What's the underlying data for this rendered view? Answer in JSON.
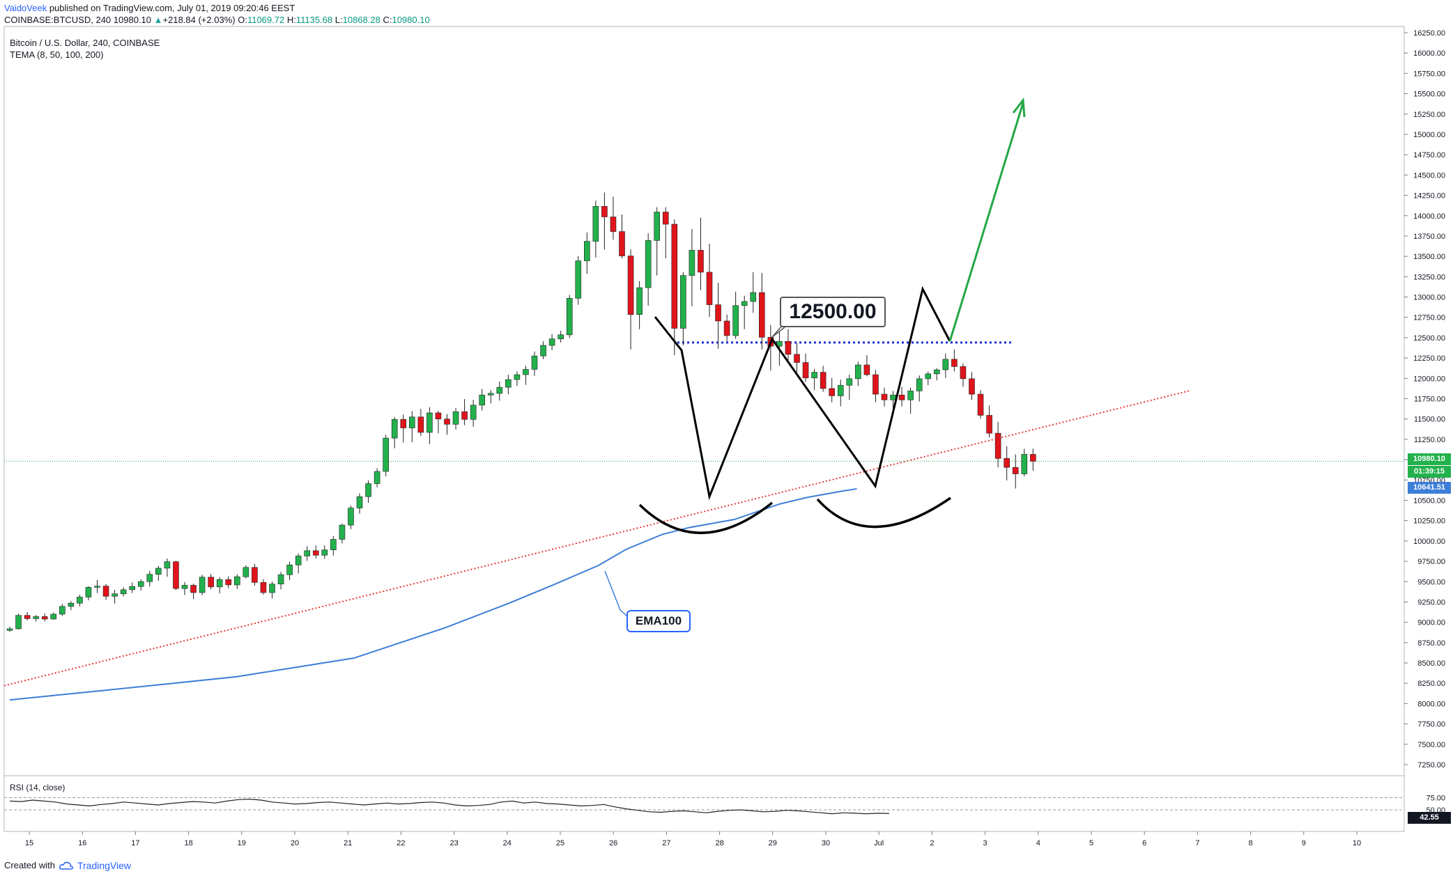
{
  "header": {
    "author": "VaidoVeek",
    "published_text": "published on TradingView.com, July 01, 2019 09:20:46 EEST",
    "symbol": "COINBASE:BTCUSD, 240",
    "last_price": "10980.10",
    "change": "+218.84 (+2.03%)",
    "o_label": "O:",
    "open": "11069.72",
    "h_label": "H:",
    "high": "11135.68",
    "l_label": "L:",
    "low": "10868.28",
    "c_label": "C:",
    "close": "10980.10"
  },
  "legend": {
    "title": "Bitcoin / U.S. Dollar, 240, COINBASE",
    "indicator": "TEMA (8, 50, 100, 200)",
    "rsi": "RSI (14, close)"
  },
  "annotations": {
    "ema_label": "EMA100",
    "price_callout": "12500.00"
  },
  "axis_tags": {
    "last_price": "10980.10",
    "countdown": "01:39:15",
    "ema_value": "10641.51",
    "rsi_value": "42.55"
  },
  "footer": {
    "created_with": "Created with",
    "brand": "TradingView"
  },
  "colors": {
    "up": "#26a69a",
    "up_candle": "#22b14c",
    "down_candle": "#e0141b",
    "ema": "#3d7ed8",
    "trend": "#e53935",
    "resistance": "#1b2fd8",
    "arrow": "#22a846",
    "pattern": "#000000"
  },
  "chart_data": {
    "type": "candlestick",
    "title": "Bitcoin / U.S. Dollar, 240, COINBASE",
    "x_ticks": [
      "15",
      "16",
      "17",
      "18",
      "19",
      "20",
      "21",
      "22",
      "23",
      "24",
      "25",
      "26",
      "27",
      "28",
      "29",
      "30",
      "Jul",
      "2",
      "3",
      "4",
      "5",
      "6",
      "7",
      "8",
      "9",
      "10"
    ],
    "y_ticks": [
      "16250.00",
      "16000.00",
      "15750.00",
      "15500.00",
      "15250.00",
      "15000.00",
      "14750.00",
      "14500.00",
      "14250.00",
      "14000.00",
      "13750.00",
      "13500.00",
      "13250.00",
      "13000.00",
      "12750.00",
      "12500.00",
      "12250.00",
      "12000.00",
      "11750.00",
      "11500.00",
      "11250.00",
      "11000.00",
      "10750.00",
      "10500.00",
      "10250.00",
      "10000.00",
      "9750.00",
      "9500.00",
      "9250.00",
      "9000.00",
      "8750.00",
      "8500.00",
      "8250.00",
      "8000.00",
      "7750.00",
      "7500.00",
      "7250.00"
    ],
    "ylim": [
      7100,
      16300
    ],
    "rsi_ticks": [
      "75.00",
      "50.00"
    ],
    "candles": [
      [
        8900,
        8945,
        8880,
        8920
      ],
      [
        8920,
        9105,
        8910,
        9085
      ],
      [
        9085,
        9125,
        9025,
        9045
      ],
      [
        9045,
        9090,
        9010,
        9070
      ],
      [
        9070,
        9110,
        9010,
        9040
      ],
      [
        9040,
        9120,
        9030,
        9100
      ],
      [
        9100,
        9225,
        9080,
        9195
      ],
      [
        9195,
        9260,
        9150,
        9235
      ],
      [
        9235,
        9340,
        9195,
        9310
      ],
      [
        9310,
        9445,
        9270,
        9430
      ],
      [
        9430,
        9520,
        9360,
        9445
      ],
      [
        9445,
        9470,
        9275,
        9320
      ],
      [
        9320,
        9400,
        9230,
        9350
      ],
      [
        9350,
        9430,
        9320,
        9400
      ],
      [
        9400,
        9490,
        9360,
        9440
      ],
      [
        9440,
        9530,
        9390,
        9500
      ],
      [
        9500,
        9630,
        9440,
        9590
      ],
      [
        9590,
        9695,
        9510,
        9665
      ],
      [
        9665,
        9785,
        9560,
        9745
      ],
      [
        9745,
        9755,
        9395,
        9415
      ],
      [
        9415,
        9495,
        9335,
        9455
      ],
      [
        9455,
        9475,
        9285,
        9365
      ],
      [
        9365,
        9585,
        9335,
        9555
      ],
      [
        9555,
        9595,
        9405,
        9435
      ],
      [
        9435,
        9555,
        9355,
        9525
      ],
      [
        9525,
        9565,
        9420,
        9460
      ],
      [
        9460,
        9590,
        9410,
        9560
      ],
      [
        9560,
        9700,
        9540,
        9675
      ],
      [
        9675,
        9720,
        9450,
        9490
      ],
      [
        9490,
        9530,
        9340,
        9365
      ],
      [
        9365,
        9500,
        9295,
        9470
      ],
      [
        9470,
        9620,
        9405,
        9585
      ],
      [
        9585,
        9745,
        9520,
        9705
      ],
      [
        9705,
        9845,
        9600,
        9815
      ],
      [
        9815,
        9935,
        9755,
        9880
      ],
      [
        9880,
        9945,
        9785,
        9825
      ],
      [
        9825,
        9945,
        9780,
        9890
      ],
      [
        9890,
        10060,
        9820,
        10020
      ],
      [
        10020,
        10215,
        9970,
        10195
      ],
      [
        10195,
        10435,
        10145,
        10405
      ],
      [
        10405,
        10585,
        10335,
        10545
      ],
      [
        10545,
        10745,
        10470,
        10705
      ],
      [
        10705,
        10895,
        10660,
        10855
      ],
      [
        10855,
        11305,
        10795,
        11265
      ],
      [
        11265,
        11525,
        11140,
        11495
      ],
      [
        11495,
        11555,
        11210,
        11390
      ],
      [
        11390,
        11595,
        11215,
        11525
      ],
      [
        11525,
        11625,
        11290,
        11335
      ],
      [
        11335,
        11645,
        11190,
        11575
      ],
      [
        11575,
        11600,
        11325,
        11500
      ],
      [
        11500,
        11560,
        11305,
        11435
      ],
      [
        11435,
        11635,
        11370,
        11590
      ],
      [
        11590,
        11745,
        11425,
        11495
      ],
      [
        11495,
        11735,
        11405,
        11670
      ],
      [
        11670,
        11870,
        11605,
        11795
      ],
      [
        11795,
        11855,
        11690,
        11815
      ],
      [
        11815,
        11960,
        11725,
        11890
      ],
      [
        11890,
        12045,
        11805,
        11985
      ],
      [
        11985,
        12085,
        11905,
        12045
      ],
      [
        12045,
        12155,
        11920,
        12110
      ],
      [
        12110,
        12330,
        12030,
        12275
      ],
      [
        12275,
        12455,
        12235,
        12405
      ],
      [
        12405,
        12545,
        12345,
        12485
      ],
      [
        12485,
        12585,
        12440,
        12535
      ],
      [
        12535,
        13025,
        12495,
        12985
      ],
      [
        12985,
        13505,
        12905,
        13445
      ],
      [
        13445,
        13795,
        13285,
        13685
      ],
      [
        13685,
        14185,
        13485,
        14115
      ],
      [
        14115,
        14285,
        13585,
        13985
      ],
      [
        13985,
        14235,
        13705,
        13805
      ],
      [
        13805,
        14015,
        13475,
        13505
      ],
      [
        13505,
        13585,
        12355,
        12785
      ],
      [
        12785,
        13195,
        12605,
        13115
      ],
      [
        13115,
        13785,
        12895,
        13695
      ],
      [
        13695,
        14105,
        13265,
        14045
      ],
      [
        14045,
        14105,
        13475,
        13895
      ],
      [
        13895,
        13955,
        12285,
        12615
      ],
      [
        12615,
        13305,
        12405,
        13265
      ],
      [
        13265,
        13835,
        12885,
        13575
      ],
      [
        13575,
        13975,
        13085,
        13305
      ],
      [
        13305,
        13655,
        12755,
        12905
      ],
      [
        12905,
        13175,
        12365,
        12705
      ],
      [
        12705,
        12785,
        12455,
        12525
      ],
      [
        12525,
        13065,
        12485,
        12895
      ],
      [
        12895,
        13015,
        12605,
        12945
      ],
      [
        12945,
        13305,
        12805,
        13055
      ],
      [
        13055,
        13295,
        12355,
        12505
      ],
      [
        12505,
        12655,
        12095,
        12395
      ],
      [
        12395,
        12605,
        12155,
        12455
      ],
      [
        12455,
        12605,
        12205,
        12295
      ],
      [
        12295,
        12435,
        12075,
        12195
      ],
      [
        12195,
        12305,
        11955,
        12005
      ],
      [
        12005,
        12115,
        11855,
        12075
      ],
      [
        12075,
        12155,
        11835,
        11875
      ],
      [
        11875,
        12005,
        11705,
        11785
      ],
      [
        11785,
        11985,
        11655,
        11915
      ],
      [
        11915,
        12045,
        11735,
        11995
      ],
      [
        11995,
        12205,
        11905,
        12165
      ],
      [
        12165,
        12285,
        12025,
        12045
      ],
      [
        12045,
        12105,
        11705,
        11805
      ],
      [
        11805,
        11885,
        11655,
        11735
      ],
      [
        11735,
        11845,
        11585,
        11795
      ],
      [
        11795,
        11895,
        11655,
        11735
      ],
      [
        11735,
        11885,
        11565,
        11845
      ],
      [
        11845,
        12035,
        11715,
        11995
      ],
      [
        11995,
        12085,
        11915,
        12055
      ],
      [
        12055,
        12125,
        11975,
        12105
      ],
      [
        12105,
        12305,
        12005,
        12235
      ],
      [
        12235,
        12355,
        12085,
        12145
      ],
      [
        12145,
        12185,
        11895,
        11995
      ],
      [
        11995,
        12075,
        11735,
        11805
      ],
      [
        11805,
        11855,
        11505,
        11545
      ],
      [
        11545,
        11665,
        11275,
        11325
      ],
      [
        11325,
        11465,
        10905,
        11015
      ],
      [
        11015,
        11165,
        10745,
        10905
      ],
      [
        10905,
        11065,
        10645,
        10825
      ],
      [
        10825,
        11135,
        10795,
        11065
      ],
      [
        11065,
        11135,
        10865,
        10980
      ]
    ],
    "rsi": [
      68,
      67,
      70,
      68,
      66,
      62,
      60,
      58,
      61,
      63,
      66,
      64,
      62,
      60,
      63,
      65,
      67,
      66,
      64,
      68,
      71,
      72,
      70,
      66,
      64,
      62,
      63,
      65,
      66,
      64,
      62,
      60,
      62,
      64,
      62,
      63,
      65,
      66,
      64,
      60,
      58,
      59,
      61,
      66,
      68,
      64,
      66,
      63,
      62,
      60,
      58,
      59,
      61,
      56,
      52,
      49,
      46,
      45,
      47,
      48,
      46,
      44,
      47,
      49,
      50,
      48,
      46,
      47,
      49,
      48,
      46,
      44,
      42,
      44,
      43,
      42,
      43,
      42.55
    ],
    "ema100": [
      [
        0,
        8045
      ],
      [
        0.12,
        8180
      ],
      [
        0.25,
        8330
      ],
      [
        0.38,
        8560
      ],
      [
        0.48,
        8930
      ],
      [
        0.55,
        9230
      ],
      [
        0.6,
        9460
      ],
      [
        0.65,
        9700
      ],
      [
        0.68,
        9895
      ],
      [
        0.72,
        10080
      ],
      [
        0.75,
        10165
      ],
      [
        0.8,
        10265
      ],
      [
        0.85,
        10455
      ],
      [
        0.88,
        10535
      ],
      [
        0.92,
        10615
      ],
      [
        0.935,
        10641.51
      ]
    ]
  }
}
